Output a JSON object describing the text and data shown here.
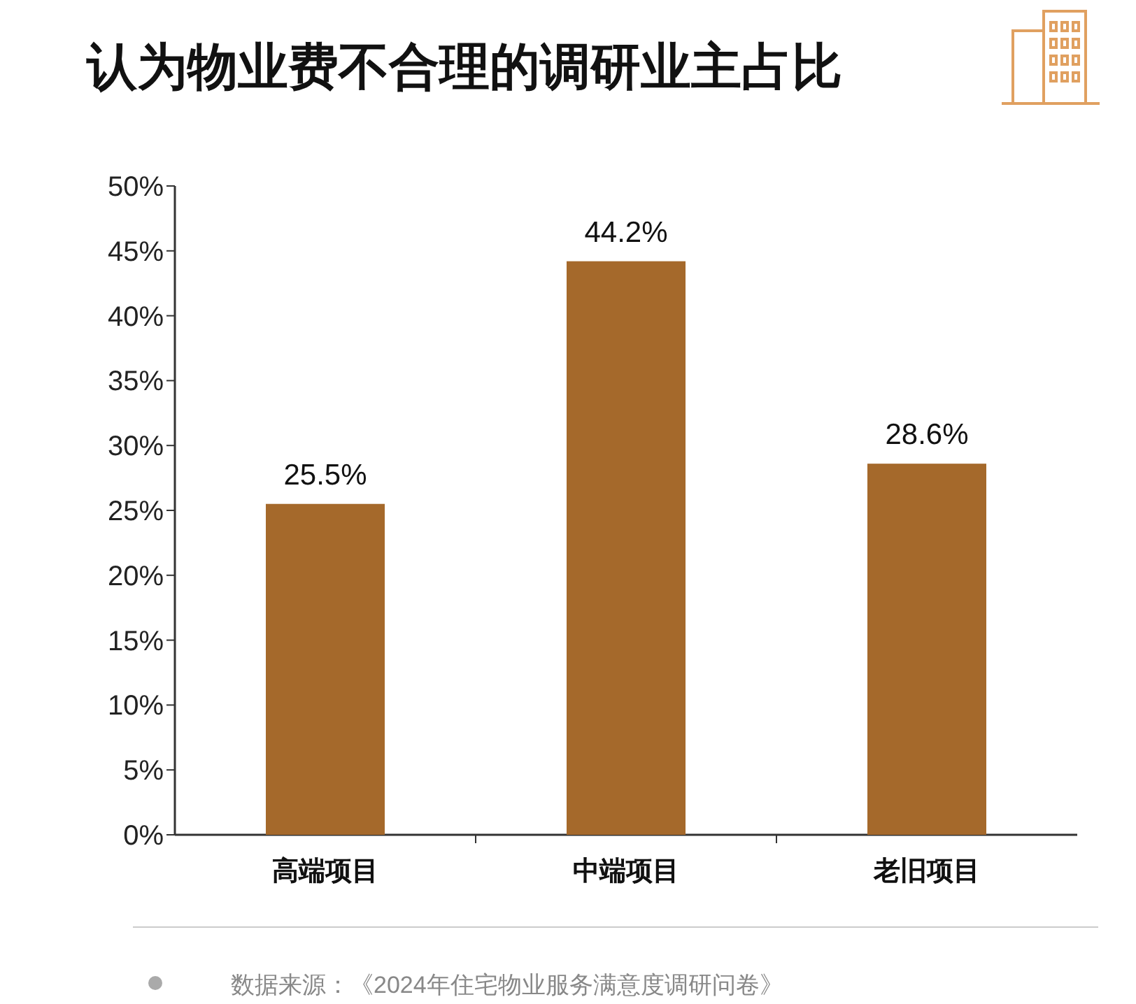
{
  "chart_data": {
    "type": "bar",
    "title": "认为物业费不合理的调研业主占比",
    "categories": [
      "高端项目",
      "中端项目",
      "老旧项目"
    ],
    "series": [
      {
        "color": "#a5692b",
        "values": [
          25.5,
          44.2,
          28.6
        ],
        "value_labels": [
          "25.5%",
          "44.2%",
          "28.6%"
        ]
      }
    ],
    "ylim": [
      0,
      50
    ],
    "yticks": [
      {
        "value": 0,
        "label": "0%"
      },
      {
        "value": 5,
        "label": "5%"
      },
      {
        "value": 10,
        "label": "10%"
      },
      {
        "value": 15,
        "label": "15%"
      },
      {
        "value": 20,
        "label": "20%"
      },
      {
        "value": 25,
        "label": "25%"
      },
      {
        "value": 30,
        "label": "30%"
      },
      {
        "value": 35,
        "label": "35%"
      },
      {
        "value": 40,
        "label": "40%"
      },
      {
        "value": 45,
        "label": "45%"
      },
      {
        "value": 50,
        "label": "50%"
      }
    ],
    "grid": false,
    "annotations": [
      "数据来源：《2024年住宅物业服务满意度调研问卷》"
    ]
  }
}
